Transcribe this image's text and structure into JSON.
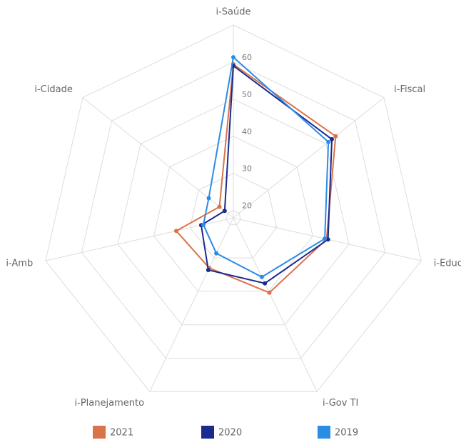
{
  "chart_data": {
    "type": "radar",
    "categories": [
      "i-Saúde",
      "i-Fiscal",
      "i-Educ",
      "i-Gov TI",
      "i-Planejamento",
      "i-Amb",
      "i-Cidade"
    ],
    "series": [
      {
        "name": "2021",
        "color": "#d9734a",
        "values": [
          59.4,
          53.3,
          43.8,
          40.4,
          33,
          33.8,
          22.8
        ]
      },
      {
        "name": "2020",
        "color": "#1a2a8f",
        "values": [
          59,
          52,
          44.2,
          37.6,
          33.6,
          26.9,
          21
        ]
      },
      {
        "name": "2019",
        "color": "#2b8ce6",
        "values": [
          61.3,
          50.8,
          43.3,
          35.7,
          28.6,
          26.3,
          26.5
        ]
      }
    ],
    "ylim": [
      18,
      70
    ],
    "yticks": [
      20,
      30,
      40,
      50,
      60
    ],
    "grid": true,
    "legend": "bottom"
  }
}
